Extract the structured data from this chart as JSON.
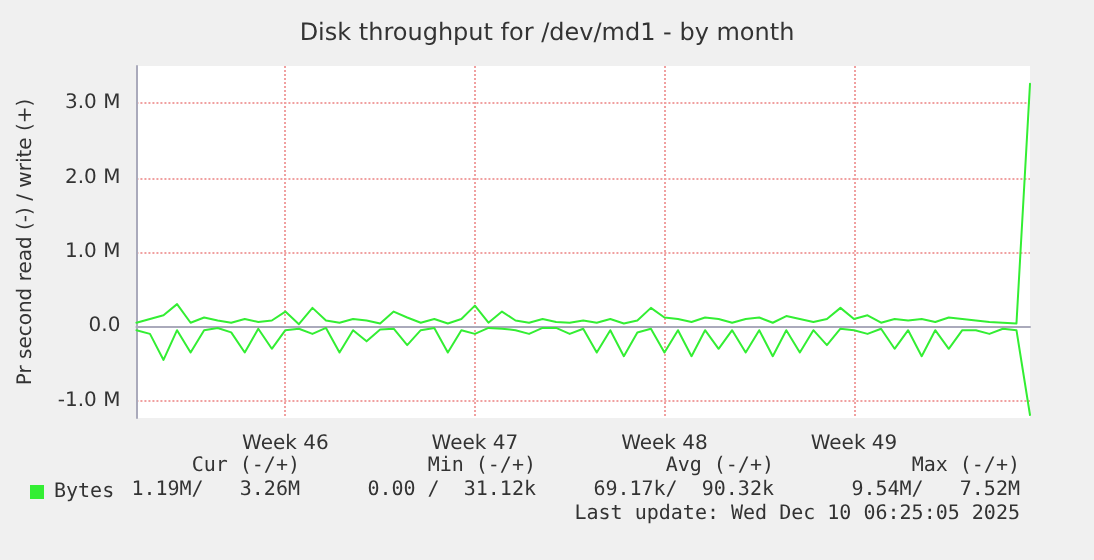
{
  "chart_data": {
    "type": "line",
    "title": "Disk throughput for /dev/md1 - by month",
    "ylabel": "Pr second read (-) / write (+)",
    "categories": [
      null,
      null,
      null,
      null,
      null,
      null,
      null,
      null,
      null,
      null,
      null,
      "Week 46",
      null,
      null,
      null,
      null,
      null,
      null,
      null,
      null,
      null,
      null,
      null,
      null,
      null,
      "Week 47",
      null,
      null,
      null,
      null,
      null,
      null,
      null,
      null,
      null,
      null,
      null,
      null,
      null,
      "Week 48",
      null,
      null,
      null,
      null,
      null,
      null,
      null,
      null,
      null,
      null,
      null,
      null,
      null,
      "Week 49",
      null,
      null,
      null,
      null,
      null,
      null,
      null,
      null,
      null,
      null,
      null,
      null,
      null
    ],
    "series": [
      {
        "name": "Bytes",
        "color": "#33ee33",
        "values": [
          0.05,
          0.1,
          0.15,
          0.3,
          0.05,
          0.12,
          0.08,
          0.05,
          0.1,
          0.06,
          0.08,
          0.2,
          0.03,
          0.25,
          0.08,
          0.05,
          0.1,
          0.08,
          0.04,
          0.2,
          0.12,
          0.05,
          0.1,
          0.04,
          0.1,
          0.28,
          0.05,
          0.2,
          0.08,
          0.05,
          0.1,
          0.06,
          0.05,
          0.08,
          0.05,
          0.1,
          0.04,
          0.08,
          0.25,
          0.12,
          0.1,
          0.06,
          0.12,
          0.1,
          0.05,
          0.1,
          0.12,
          0.05,
          0.14,
          0.1,
          0.06,
          0.1,
          0.25,
          0.1,
          0.15,
          0.05,
          0.1,
          0.08,
          0.1,
          0.06,
          0.12,
          0.1,
          0.08,
          0.06,
          0.05,
          0.04,
          3.26
        ]
      },
      {
        "color": "#33ee33",
        "values": [
          -0.05,
          -0.1,
          -0.45,
          -0.05,
          -0.35,
          -0.05,
          -0.02,
          -0.08,
          -0.35,
          -0.03,
          -0.3,
          -0.05,
          -0.03,
          -0.1,
          -0.02,
          -0.35,
          -0.05,
          -0.2,
          -0.04,
          -0.03,
          -0.25,
          -0.05,
          -0.02,
          -0.35,
          -0.05,
          -0.1,
          -0.02,
          -0.03,
          -0.05,
          -0.1,
          -0.02,
          -0.02,
          -0.1,
          -0.03,
          -0.35,
          -0.05,
          -0.4,
          -0.08,
          -0.03,
          -0.35,
          -0.05,
          -0.4,
          -0.05,
          -0.3,
          -0.05,
          -0.35,
          -0.05,
          -0.4,
          -0.05,
          -0.35,
          -0.05,
          -0.25,
          -0.03,
          -0.05,
          -0.1,
          -0.03,
          -0.3,
          -0.05,
          -0.4,
          -0.05,
          -0.3,
          -0.05,
          -0.05,
          -0.1,
          -0.03,
          -0.05,
          -1.19
        ]
      }
    ],
    "ylim": [
      -1.23,
      3.5
    ],
    "yticks": [
      {
        "value": -1,
        "label": "-1.0 M"
      },
      {
        "value": 0,
        "label": "0.0"
      },
      {
        "value": 1,
        "label": "1.0 M"
      },
      {
        "value": 2,
        "label": "2.0 M"
      },
      {
        "value": 3,
        "label": "3.0 M"
      }
    ],
    "grid": true,
    "legend": "bottom",
    "marker": "none",
    "line_style": "solid",
    "annotations": [
      "Cur (-/+)",
      "Min (-/+)",
      "Avg (-/+)",
      "Max (-/+)",
      "1.19M/   3.26M",
      "0.00 /  31.12k",
      "69.17k/  90.32k",
      "9.54M/   7.52M",
      "Last update: Wed Dec 10 06:25:05 2025"
    ]
  }
}
